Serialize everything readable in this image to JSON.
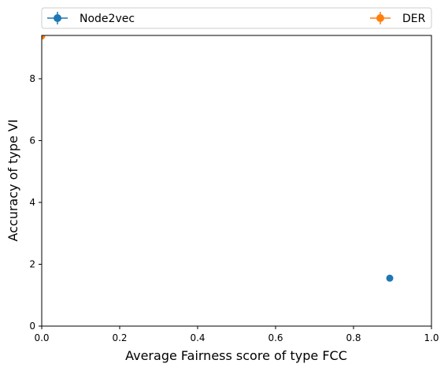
{
  "chart_data": {
    "type": "scatter",
    "title": "",
    "xlabel": "Average Fairness score of type FCC",
    "ylabel": "Accuracy of type VI",
    "xlim": [
      0,
      1
    ],
    "ylim": [
      0,
      9.4
    ],
    "xticks": [
      0,
      0.2,
      0.4,
      0.6,
      0.8,
      1
    ],
    "xtick_labels": [
      "0.0",
      "0.2",
      "0.4",
      "0.6",
      "0.8",
      "1.0"
    ],
    "yticks": [
      0,
      2,
      4,
      6,
      8
    ],
    "ytick_labels": [
      "0",
      "2",
      "4",
      "6",
      "8"
    ],
    "grid": false,
    "legend_position": "top, outside plot",
    "series": [
      {
        "name": "Node2vec",
        "color": "#1f77b4",
        "points": [
          {
            "x": 0.893,
            "y": 1.55
          }
        ]
      },
      {
        "name": "DER",
        "color": "#ff7f0e",
        "points": [
          {
            "x": 0.0,
            "y": 9.38
          }
        ]
      }
    ]
  }
}
